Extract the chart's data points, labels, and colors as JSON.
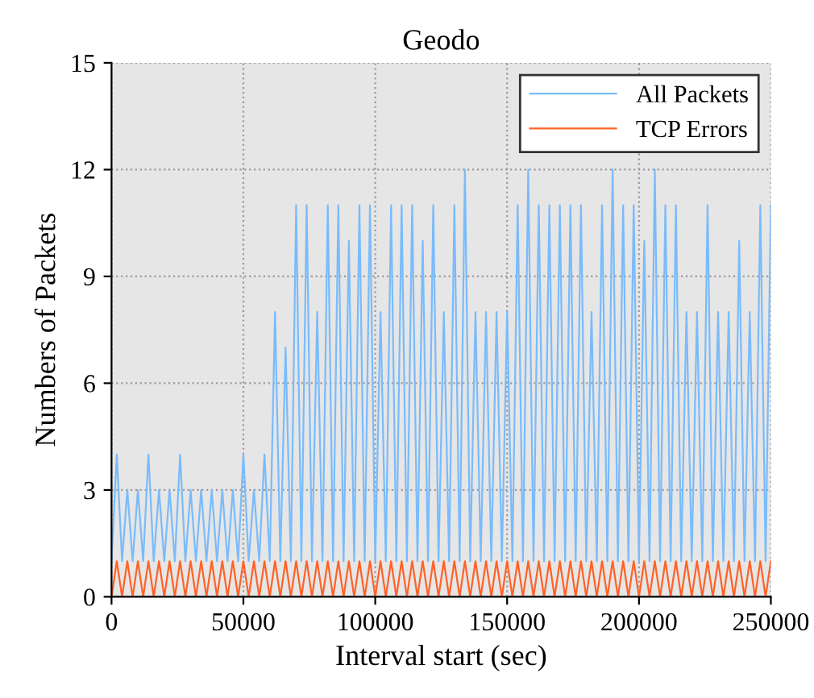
{
  "chart_data": {
    "type": "line",
    "title": "Geodo",
    "xlabel": "Interval start (sec)",
    "ylabel": "Numbers of Packets",
    "x": [
      0,
      2000,
      4000,
      6000,
      8000,
      10000,
      12000,
      14000,
      16000,
      18000,
      20000,
      22000,
      24000,
      26000,
      28000,
      30000,
      32000,
      34000,
      36000,
      38000,
      40000,
      42000,
      44000,
      46000,
      48000,
      50000,
      52000,
      54000,
      56000,
      58000,
      60000,
      62000,
      64000,
      66000,
      68000,
      70000,
      72000,
      74000,
      76000,
      78000,
      80000,
      82000,
      84000,
      86000,
      88000,
      90000,
      92000,
      94000,
      96000,
      98000,
      100000,
      102000,
      104000,
      106000,
      108000,
      110000,
      112000,
      114000,
      116000,
      118000,
      120000,
      122000,
      124000,
      126000,
      128000,
      130000,
      132000,
      134000,
      136000,
      138000,
      140000,
      142000,
      144000,
      146000,
      148000,
      150000,
      152000,
      154000,
      156000,
      158000,
      160000,
      162000,
      164000,
      166000,
      168000,
      170000,
      172000,
      174000,
      176000,
      178000,
      180000,
      182000,
      184000,
      186000,
      188000,
      190000,
      192000,
      194000,
      196000,
      198000,
      200000,
      202000,
      204000,
      206000,
      208000,
      210000,
      212000,
      214000,
      216000,
      218000,
      220000,
      222000,
      224000,
      226000,
      228000,
      230000,
      232000,
      234000,
      236000,
      238000,
      240000,
      242000,
      244000,
      246000,
      248000,
      250000
    ],
    "series": [
      {
        "name": "All Packets",
        "color": "#7abbfb",
        "values": [
          1,
          4,
          1,
          3,
          1,
          3,
          1,
          4,
          1,
          3,
          1,
          3,
          1,
          4,
          1,
          3,
          1,
          3,
          1,
          3,
          1,
          3,
          1,
          3,
          1,
          4,
          1,
          3,
          1,
          4,
          1,
          8,
          1,
          7,
          1,
          11,
          1,
          11,
          1,
          8,
          1,
          11,
          1,
          11,
          1,
          10,
          1,
          11,
          1,
          11,
          1,
          8,
          1,
          11,
          1,
          11,
          1,
          11,
          1,
          10,
          1,
          11,
          1,
          8,
          1,
          11,
          1,
          12,
          1,
          8,
          1,
          8,
          1,
          8,
          1,
          8,
          1,
          11,
          1,
          12,
          1,
          11,
          1,
          11,
          1,
          11,
          1,
          11,
          1,
          11,
          1,
          8,
          1,
          11,
          1,
          12,
          1,
          11,
          1,
          11,
          1,
          10,
          1,
          12,
          1,
          11,
          1,
          11,
          1,
          8,
          1,
          8,
          1,
          11,
          1,
          8,
          1,
          8,
          1,
          10,
          1,
          8,
          1,
          11,
          1,
          11
        ]
      },
      {
        "name": "TCP Errors",
        "color": "#ff6228",
        "values": [
          0,
          1,
          0,
          1,
          0,
          1,
          0,
          1,
          0,
          1,
          0,
          1,
          0,
          1,
          0,
          1,
          0,
          1,
          0,
          1,
          0,
          1,
          0,
          1,
          0,
          1,
          0,
          1,
          0,
          1,
          0,
          1,
          0,
          1,
          0,
          1,
          0,
          1,
          0,
          1,
          0,
          1,
          0,
          1,
          0,
          1,
          0,
          1,
          0,
          1,
          0,
          1,
          0,
          1,
          0,
          1,
          0,
          1,
          0,
          1,
          0,
          1,
          0,
          1,
          0,
          1,
          0,
          1,
          0,
          1,
          0,
          1,
          0,
          1,
          0,
          1,
          0,
          1,
          0,
          1,
          0,
          1,
          0,
          1,
          0,
          1,
          0,
          1,
          0,
          1,
          0,
          1,
          0,
          1,
          0,
          1,
          0,
          1,
          0,
          1,
          0,
          1,
          0,
          1,
          0,
          1,
          0,
          1,
          0,
          1,
          0,
          1,
          0,
          1,
          0,
          1,
          0,
          1,
          0,
          1,
          0,
          1,
          0,
          1,
          0,
          1
        ]
      }
    ],
    "xlim": [
      0,
      250000
    ],
    "xticks": [
      0,
      50000,
      100000,
      150000,
      200000,
      250000
    ],
    "ylim": [
      0,
      15
    ],
    "yticks": [
      0,
      3,
      6,
      9,
      12,
      15
    ],
    "grid": true,
    "legend": "top right",
    "line_style": "solid",
    "marker": "none"
  }
}
